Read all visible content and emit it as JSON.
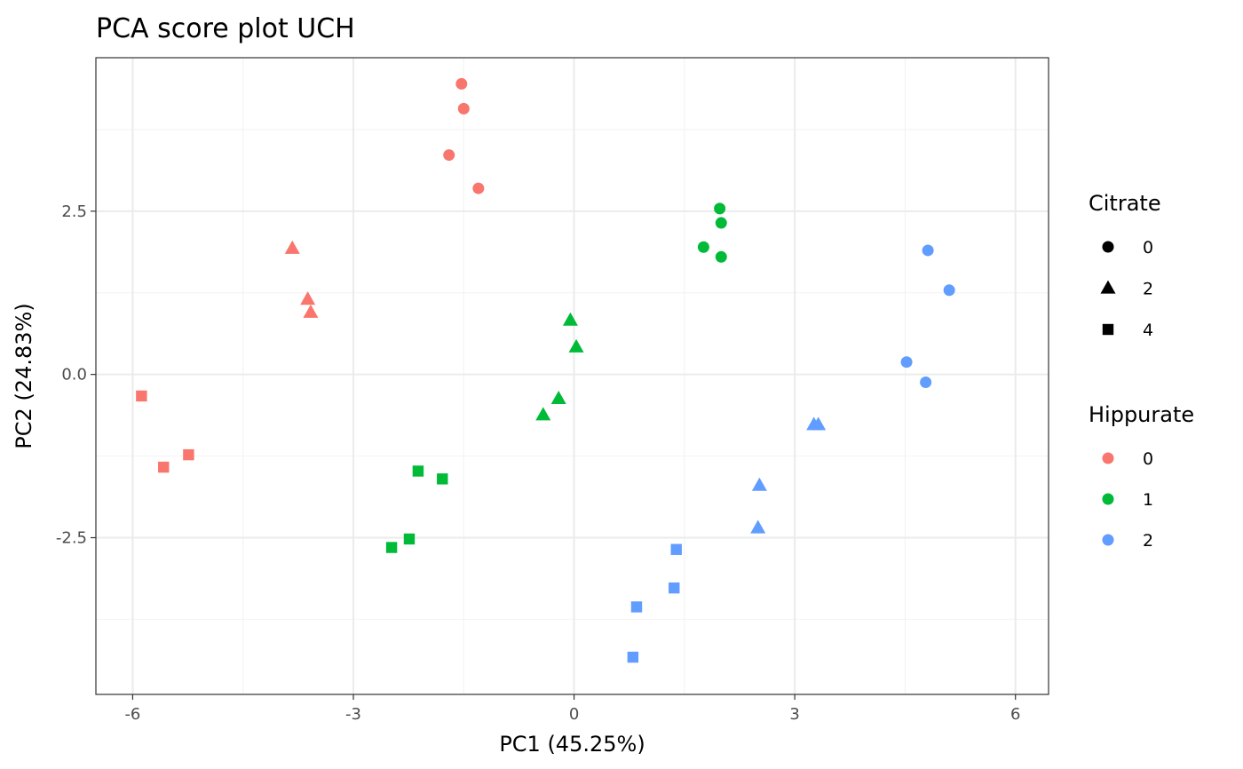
{
  "chart_data": {
    "type": "scatter",
    "title": "PCA score plot UCH",
    "xlabel": "PC1 (45.25%)",
    "ylabel": "PC2 (24.83%)",
    "xlim": [
      -6.5,
      6.45
    ],
    "ylim": [
      -4.9,
      4.85
    ],
    "xticks": [
      -6,
      -3,
      0,
      3,
      6
    ],
    "xtick_labels": [
      "-6",
      "-3",
      "0",
      "3",
      "6"
    ],
    "yticks": [
      -2.5,
      0,
      2.5
    ],
    "ytick_labels": [
      "-2.5",
      "0.0",
      "2.5"
    ],
    "grid": true,
    "legend_position": "right",
    "shape_legend": {
      "title": "Citrate",
      "items": [
        {
          "label": "0",
          "shape": "circle"
        },
        {
          "label": "2",
          "shape": "triangle"
        },
        {
          "label": "4",
          "shape": "square"
        }
      ]
    },
    "color_legend": {
      "title": "Hippurate",
      "items": [
        {
          "label": "0",
          "color": "#F8766D"
        },
        {
          "label": "1",
          "color": "#00BA38"
        },
        {
          "label": "2",
          "color": "#619CFF"
        }
      ]
    },
    "points": [
      {
        "x": -1.53,
        "y": 4.45,
        "citrate": "0",
        "hippurate": "0"
      },
      {
        "x": -1.5,
        "y": 4.07,
        "citrate": "0",
        "hippurate": "0"
      },
      {
        "x": -1.7,
        "y": 3.36,
        "citrate": "0",
        "hippurate": "0"
      },
      {
        "x": -1.3,
        "y": 2.85,
        "citrate": "0",
        "hippurate": "0"
      },
      {
        "x": -3.83,
        "y": 1.93,
        "citrate": "2",
        "hippurate": "0"
      },
      {
        "x": -3.62,
        "y": 1.15,
        "citrate": "2",
        "hippurate": "0"
      },
      {
        "x": -3.58,
        "y": 0.95,
        "citrate": "2",
        "hippurate": "0"
      },
      {
        "x": -5.88,
        "y": -0.33,
        "citrate": "4",
        "hippurate": "0"
      },
      {
        "x": -5.58,
        "y": -1.42,
        "citrate": "4",
        "hippurate": "0"
      },
      {
        "x": -5.24,
        "y": -1.23,
        "citrate": "4",
        "hippurate": "0"
      },
      {
        "x": 1.98,
        "y": 2.54,
        "citrate": "0",
        "hippurate": "1"
      },
      {
        "x": 2.0,
        "y": 2.32,
        "citrate": "0",
        "hippurate": "1"
      },
      {
        "x": 1.76,
        "y": 1.95,
        "citrate": "0",
        "hippurate": "1"
      },
      {
        "x": 2.0,
        "y": 1.8,
        "citrate": "0",
        "hippurate": "1"
      },
      {
        "x": -0.05,
        "y": 0.83,
        "citrate": "2",
        "hippurate": "1"
      },
      {
        "x": 0.03,
        "y": 0.42,
        "citrate": "2",
        "hippurate": "1"
      },
      {
        "x": -0.21,
        "y": -0.37,
        "citrate": "2",
        "hippurate": "1"
      },
      {
        "x": -0.42,
        "y": -0.62,
        "citrate": "2",
        "hippurate": "1"
      },
      {
        "x": -2.12,
        "y": -1.48,
        "citrate": "4",
        "hippurate": "1"
      },
      {
        "x": -1.79,
        "y": -1.6,
        "citrate": "4",
        "hippurate": "1"
      },
      {
        "x": -2.24,
        "y": -2.52,
        "citrate": "4",
        "hippurate": "1"
      },
      {
        "x": -2.48,
        "y": -2.65,
        "citrate": "4",
        "hippurate": "1"
      },
      {
        "x": 4.81,
        "y": 1.9,
        "citrate": "0",
        "hippurate": "2"
      },
      {
        "x": 5.1,
        "y": 1.29,
        "citrate": "0",
        "hippurate": "2"
      },
      {
        "x": 4.52,
        "y": 0.19,
        "citrate": "0",
        "hippurate": "2"
      },
      {
        "x": 4.78,
        "y": -0.12,
        "citrate": "0",
        "hippurate": "2"
      },
      {
        "x": 3.26,
        "y": -0.77,
        "citrate": "2",
        "hippurate": "2"
      },
      {
        "x": 3.32,
        "y": -0.77,
        "citrate": "2",
        "hippurate": "2"
      },
      {
        "x": 2.52,
        "y": -1.7,
        "citrate": "2",
        "hippurate": "2"
      },
      {
        "x": 2.5,
        "y": -2.35,
        "citrate": "2",
        "hippurate": "2"
      },
      {
        "x": 1.39,
        "y": -2.68,
        "citrate": "4",
        "hippurate": "2"
      },
      {
        "x": 1.36,
        "y": -3.27,
        "citrate": "4",
        "hippurate": "2"
      },
      {
        "x": 0.85,
        "y": -3.56,
        "citrate": "4",
        "hippurate": "2"
      },
      {
        "x": 0.8,
        "y": -4.33,
        "citrate": "4",
        "hippurate": "2"
      }
    ]
  }
}
